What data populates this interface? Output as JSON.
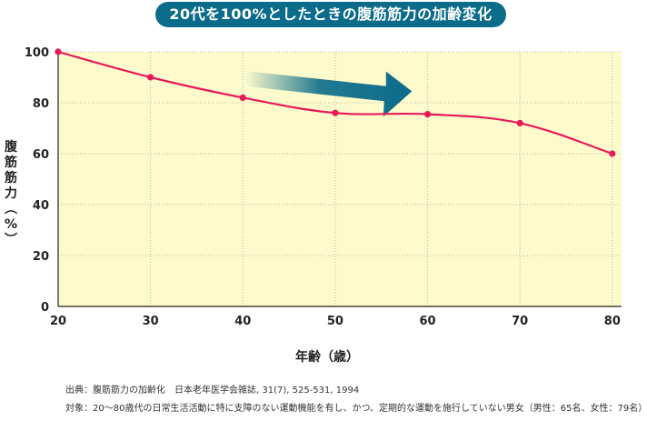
{
  "title": "20代を100%としたときの腹筋筋力の加齢変化",
  "chart_data": {
    "type": "line",
    "title": "20代を100%としたときの腹筋筋力の加齢変化",
    "xlabel": "年齢（歳）",
    "ylabel": "腹筋筋力（%）",
    "x": [
      20,
      30,
      40,
      50,
      60,
      70,
      80
    ],
    "series": [
      {
        "name": "腹筋筋力",
        "values": [
          100,
          90,
          82,
          76,
          75.5,
          72,
          60
        ]
      }
    ],
    "xticks": [
      "20",
      "30",
      "40",
      "50",
      "60",
      "70",
      "80"
    ],
    "yticks": [
      "0",
      "20",
      "40",
      "60",
      "80",
      "100"
    ],
    "xlim": [
      20,
      81
    ],
    "ylim": [
      0,
      100
    ],
    "grid": true,
    "annotation": "decline-arrow"
  },
  "colors": {
    "line": "#e8195a",
    "plot_bg": "#fdfbcc",
    "title_bg": "#0b6b8a",
    "arrow": "#0b6b8a"
  },
  "notes": {
    "source": "出典：腹筋筋力の加齢化　日本老年医学会雑誌, 31(7), 525-531, 1994",
    "subjects": "対象：20〜80歳代の日常生活活動に特に支障のない運動機能を有し、かつ、定期的な運動を施行していない男女（男性：65名、女性：79名）"
  }
}
